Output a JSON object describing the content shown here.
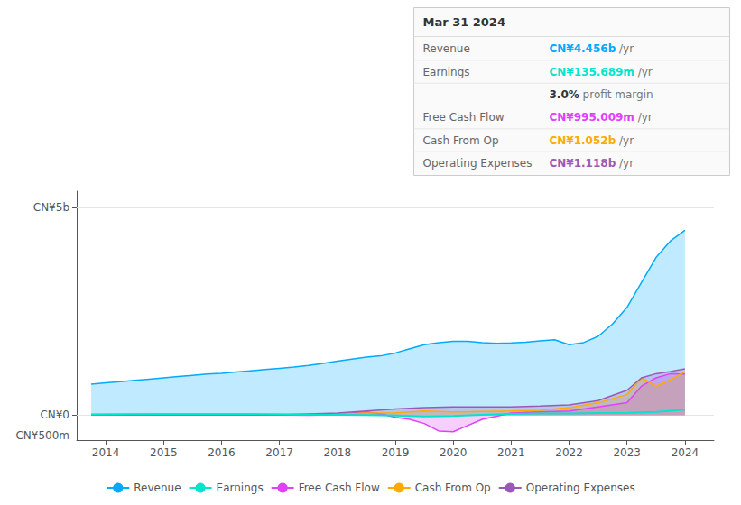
{
  "chart_data": {
    "type": "line",
    "xlim": [
      2013.5,
      2024.5
    ],
    "ylim": [
      -600,
      5400
    ],
    "xticks": [
      2014,
      2015,
      2016,
      2017,
      2018,
      2019,
      2020,
      2021,
      2022,
      2023,
      2024
    ],
    "yticks": [
      {
        "value": -500,
        "label": "-CN¥500m"
      },
      {
        "value": 0,
        "label": "CN¥0"
      },
      {
        "value": 5000,
        "label": "CN¥5b"
      }
    ],
    "grid": true,
    "legend": "bottom",
    "series": [
      {
        "name": "Revenue",
        "type": "area",
        "color": "#00aaff",
        "x": [
          2013.75,
          2014.0,
          2014.25,
          2014.5,
          2014.75,
          2015.0,
          2015.25,
          2015.5,
          2015.75,
          2016.0,
          2016.25,
          2016.5,
          2016.75,
          2017.0,
          2017.25,
          2017.5,
          2017.75,
          2018.0,
          2018.25,
          2018.5,
          2018.75,
          2019.0,
          2019.25,
          2019.5,
          2019.75,
          2020.0,
          2020.25,
          2020.5,
          2020.75,
          2021.0,
          2021.25,
          2021.5,
          2021.75,
          2022.0,
          2022.25,
          2022.5,
          2022.75,
          2023.0,
          2023.25,
          2023.5,
          2023.75,
          2024.0
        ],
        "values": [
          750,
          780,
          810,
          840,
          870,
          900,
          930,
          960,
          990,
          1010,
          1040,
          1070,
          1100,
          1130,
          1160,
          1200,
          1250,
          1300,
          1350,
          1400,
          1430,
          1500,
          1600,
          1700,
          1750,
          1780,
          1780,
          1750,
          1730,
          1740,
          1760,
          1790,
          1820,
          1700,
          1750,
          1900,
          2200,
          2600,
          3200,
          3800,
          4200,
          4456
        ]
      },
      {
        "name": "Earnings",
        "type": "line",
        "color": "#00e5cc",
        "x": [
          2013.75,
          2014.0,
          2014.5,
          2015.0,
          2015.5,
          2016.0,
          2016.5,
          2017.0,
          2017.5,
          2018.0,
          2018.5,
          2019.0,
          2019.5,
          2020.0,
          2020.5,
          2021.0,
          2021.5,
          2022.0,
          2022.5,
          2023.0,
          2023.5,
          2024.0
        ],
        "values": [
          20,
          20,
          25,
          25,
          25,
          25,
          25,
          20,
          15,
          10,
          5,
          -10,
          -30,
          -20,
          10,
          30,
          40,
          40,
          50,
          60,
          80,
          136
        ]
      },
      {
        "name": "Free Cash Flow",
        "type": "area",
        "color": "#e040fb",
        "x": [
          2013.75,
          2014.0,
          2014.5,
          2015.0,
          2015.5,
          2016.0,
          2016.5,
          2017.0,
          2017.5,
          2018.0,
          2018.25,
          2018.5,
          2018.75,
          2019.0,
          2019.25,
          2019.5,
          2019.75,
          2020.0,
          2020.5,
          2021.0,
          2021.5,
          2022.0,
          2022.5,
          2023.0,
          2023.25,
          2023.5,
          2023.75,
          2024.0
        ],
        "values": [
          10,
          10,
          10,
          5,
          5,
          5,
          5,
          5,
          0,
          10,
          50,
          80,
          30,
          -50,
          -100,
          -200,
          -380,
          -400,
          -100,
          50,
          80,
          100,
          200,
          300,
          700,
          900,
          1000,
          995
        ]
      },
      {
        "name": "Cash From Op",
        "type": "area",
        "color": "#ffaa00",
        "x": [
          2013.75,
          2014.0,
          2014.5,
          2015.0,
          2015.5,
          2016.0,
          2016.5,
          2017.0,
          2017.5,
          2018.0,
          2018.5,
          2019.0,
          2019.5,
          2020.0,
          2020.5,
          2021.0,
          2021.5,
          2022.0,
          2022.5,
          2023.0,
          2023.25,
          2023.5,
          2023.75,
          2024.0
        ],
        "values": [
          20,
          25,
          25,
          30,
          30,
          30,
          30,
          25,
          20,
          30,
          50,
          60,
          100,
          80,
          90,
          100,
          120,
          180,
          300,
          500,
          900,
          700,
          850,
          1052
        ]
      },
      {
        "name": "Operating Expenses",
        "type": "area",
        "color": "#9b59b6",
        "x": [
          2013.75,
          2014.0,
          2015.0,
          2016.0,
          2017.0,
          2018.0,
          2018.5,
          2019.0,
          2019.5,
          2020.0,
          2020.5,
          2021.0,
          2021.5,
          2022.0,
          2022.5,
          2023.0,
          2023.25,
          2023.5,
          2023.75,
          2024.0
        ],
        "values": [
          10,
          10,
          10,
          10,
          10,
          50,
          100,
          150,
          180,
          200,
          200,
          200,
          220,
          250,
          350,
          600,
          900,
          1000,
          1050,
          1118
        ]
      }
    ],
    "annotation": {
      "title": "Mar 31 2024",
      "rows": [
        {
          "label": "Revenue",
          "value": "CN¥4.456b",
          "unit": "/yr",
          "color": "#00aaff"
        },
        {
          "label": "Earnings",
          "value": "CN¥135.689m",
          "unit": "/yr",
          "color": "#00e5cc"
        },
        {
          "value": "3.0%",
          "unit": "profit margin"
        },
        {
          "label": "Free Cash Flow",
          "value": "CN¥995.009m",
          "unit": "/yr",
          "color": "#e040fb"
        },
        {
          "label": "Cash From Op",
          "value": "CN¥1.052b",
          "unit": "/yr",
          "color": "#ffaa00"
        },
        {
          "label": "Operating Expenses",
          "value": "CN¥1.118b",
          "unit": "/yr",
          "color": "#9b59b6"
        }
      ]
    }
  }
}
